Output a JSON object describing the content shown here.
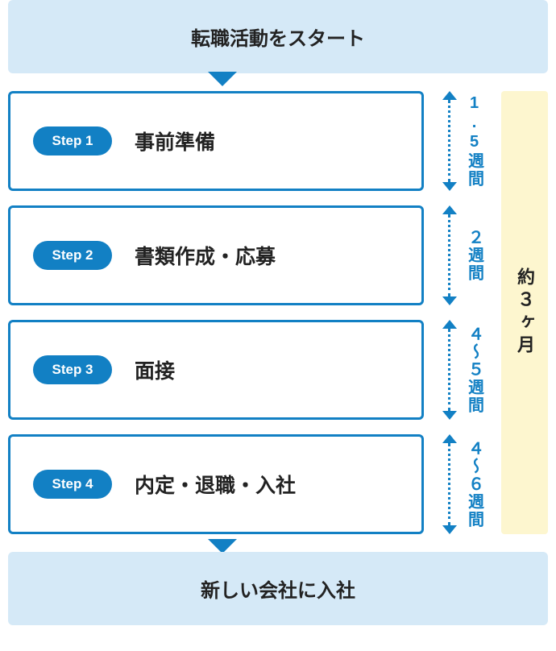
{
  "diagram": {
    "type": "flowchart",
    "header": "転職活動をスタート",
    "footer": "新しい会社に入社",
    "total_duration": "約３ヶ月",
    "colors": {
      "header_bg": "#d5e9f7",
      "accent": "#1280c4",
      "accent_text": "#1280c4",
      "triangle": "#1280c4",
      "total_bg": "#fdf6cf",
      "card_border": "#1280c4",
      "badge_bg": "#1280c4"
    },
    "steps": [
      {
        "badge": "Step 1",
        "title": "事前準備",
        "duration": "1.5週間"
      },
      {
        "badge": "Step 2",
        "title": "書類作成・応募",
        "duration": "２週間"
      },
      {
        "badge": "Step 3",
        "title": "面接",
        "duration": "４〜５週間"
      },
      {
        "badge": "Step 4",
        "title": "内定・退職・入社",
        "duration": "４〜６週間"
      }
    ]
  }
}
